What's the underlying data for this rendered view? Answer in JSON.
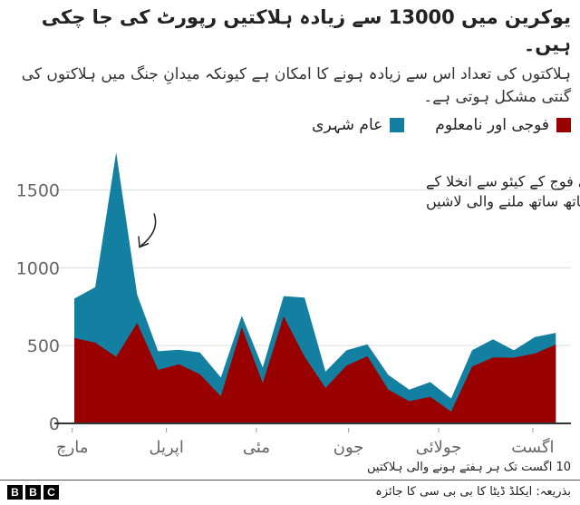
{
  "title": "یوکرین میں 13000 سے زیادہ ہلاکتیں رپورٹ کی جا چکی ہیں۔",
  "subtitle": "ہلاکتوں کی تعداد اس سے زیادہ ہونے کا امکان ہے کیونکہ میدانِ جنگ میں ہلاکتوں کی گنتی مشکل ہوتی ہے۔",
  "colors": {
    "military": "#990000",
    "civilian": "#1380A1"
  },
  "footer": {
    "note": "10 اگست تک ہر ہفتے ہونے والی ہلاکتیں",
    "source": "بذریعہ: ایکلڈ ڈیٹا کا بی بی سی کا جائزہ",
    "logo": "BBC"
  },
  "chart_data": {
    "type": "area",
    "stacked": true,
    "title": "یوکرین میں 13000 سے زیادہ ہلاکتیں رپورٹ کی جا چکی ہیں۔",
    "legend_position": "top-right",
    "grid": true,
    "ylim": [
      0,
      1800
    ],
    "yticks": [
      0,
      500,
      1000,
      1500
    ],
    "ytick_labels": [
      "0",
      "500",
      "1000",
      "1500"
    ],
    "x_tick_labels": [
      "مارچ",
      "اپریل",
      "مئی",
      "جون",
      "جولائی",
      "اگست"
    ],
    "x_tick_week_index": [
      -0.1,
      4.4,
      8.7,
      13.1,
      17.4,
      21.9
    ],
    "weeks": 24,
    "series": [
      {
        "name": "فوجی اور نامعلوم",
        "color": "#990000",
        "values": [
          549,
          519,
          428,
          646,
          344,
          380,
          316,
          175,
          618,
          259,
          688,
          428,
          228,
          371,
          432,
          217,
          143,
          171,
          76,
          365,
          424,
          422,
          449,
          506
        ]
      },
      {
        "name": "عام شہری",
        "color": "#1380A1",
        "values": [
          253,
          356,
          1314,
          183,
          120,
          93,
          140,
          120,
          74,
          100,
          130,
          380,
          105,
          99,
          76,
          95,
          74,
          95,
          84,
          105,
          116,
          48,
          106,
          76
        ]
      }
    ],
    "annotation": "روسی فوج کے کیئو سے انخلا کے ساتھ ساتھ ملنے والی لاشیں"
  }
}
